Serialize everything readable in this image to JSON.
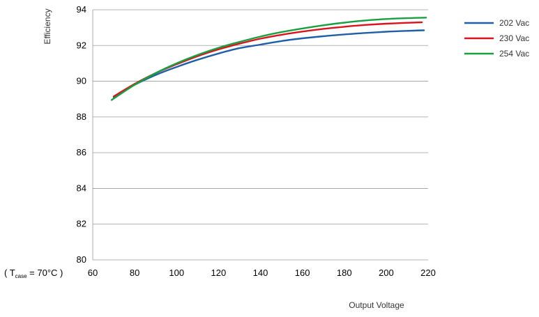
{
  "chart_data": {
    "type": "line",
    "xlabel": "Output Voltage",
    "ylabel": "Efficiency",
    "xlim": [
      60,
      220
    ],
    "ylim": [
      80,
      94
    ],
    "xticks": [
      "60",
      "80",
      "100",
      "120",
      "140",
      "160",
      "180",
      "200",
      "220"
    ],
    "yticks": [
      "80",
      "82",
      "84",
      "86",
      "88",
      "90",
      "92",
      "94"
    ],
    "grid": "horizontal",
    "legend_position": "right",
    "condition": {
      "prefix": "( T",
      "subscript": "case",
      "suffix": " = 70°C )"
    },
    "series": [
      {
        "name": "202 Vac",
        "color": "#1f5fa8",
        "x": [
          70,
          80,
          90,
          100,
          110,
          120,
          130,
          140,
          150,
          160,
          170,
          180,
          190,
          200,
          210,
          218
        ],
        "y": [
          89.1,
          89.8,
          90.35,
          90.8,
          91.2,
          91.55,
          91.85,
          92.05,
          92.25,
          92.4,
          92.52,
          92.62,
          92.7,
          92.77,
          92.82,
          92.85
        ]
      },
      {
        "name": "230 Vac",
        "color": "#d9141c",
        "x": [
          70,
          80,
          90,
          100,
          110,
          120,
          130,
          140,
          150,
          160,
          170,
          180,
          190,
          200,
          210,
          217
        ],
        "y": [
          89.15,
          89.85,
          90.45,
          90.95,
          91.4,
          91.78,
          92.1,
          92.38,
          92.6,
          92.78,
          92.93,
          93.05,
          93.15,
          93.22,
          93.27,
          93.3
        ]
      },
      {
        "name": "254 Vac",
        "color": "#18a040",
        "x": [
          69,
          80,
          90,
          100,
          110,
          120,
          130,
          140,
          150,
          160,
          170,
          180,
          190,
          200,
          210,
          219
        ],
        "y": [
          88.95,
          89.8,
          90.45,
          91.0,
          91.47,
          91.87,
          92.2,
          92.5,
          92.75,
          92.95,
          93.13,
          93.28,
          93.4,
          93.48,
          93.53,
          93.56
        ]
      }
    ]
  }
}
